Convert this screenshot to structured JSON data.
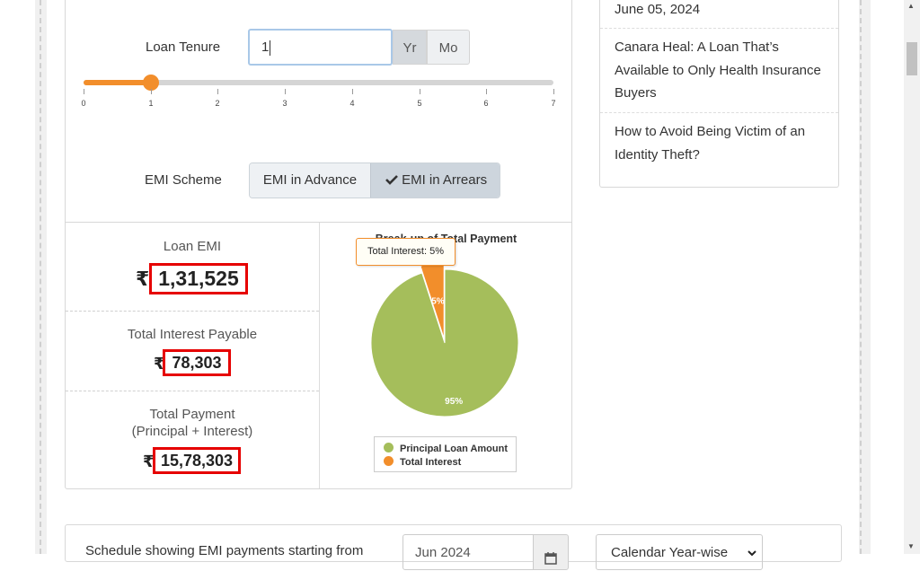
{
  "loan_tenure": {
    "label": "Loan Tenure",
    "value": "1",
    "unit_year": "Yr",
    "unit_month": "Mo",
    "slider_ticks": [
      "0",
      "1",
      "2",
      "3",
      "4",
      "5",
      "6",
      "7"
    ],
    "slider_value_years": 1,
    "slider_max_years": 7
  },
  "emi_scheme": {
    "label": "EMI Scheme",
    "option_advance": "EMI in Advance",
    "option_arrears": "EMI in Arrears",
    "selected": "EMI in Arrears"
  },
  "results": {
    "rupee": "₹",
    "loan_emi_label": "Loan EMI",
    "loan_emi_value": "1,31,525",
    "total_interest_label": "Total Interest Payable",
    "total_interest_value": "78,303",
    "total_payment_label_line1": "Total Payment",
    "total_payment_label_line2": "(Principal + Interest)",
    "total_payment_value": "15,78,303"
  },
  "chart_data": {
    "type": "pie",
    "title": "Break-up of Total Payment",
    "categories": [
      "Principal Loan Amount",
      "Total Interest"
    ],
    "values": [
      95,
      5
    ],
    "colors": [
      "#a5be5b",
      "#f28e2b"
    ],
    "data_labels": [
      "95%",
      "5%"
    ],
    "tooltip": "Total Interest: 5%",
    "legend": [
      "Principal Loan Amount",
      "Total Interest"
    ],
    "legend_position": "bottom"
  },
  "sidebar": {
    "items": [
      "June 05, 2024",
      "Canara Heal: A Loan That’s Available to Only Health Insurance Buyers",
      "How to Avoid Being Victim of an Identity Theft?"
    ]
  },
  "schedule": {
    "text": "Schedule showing EMI payments starting from",
    "month_value": "Jun 2024",
    "view_select": "Calendar Year-wise"
  },
  "colors": {
    "accent": "#f28e2b",
    "principal": "#a5be5b",
    "highlight": "#e60000"
  }
}
